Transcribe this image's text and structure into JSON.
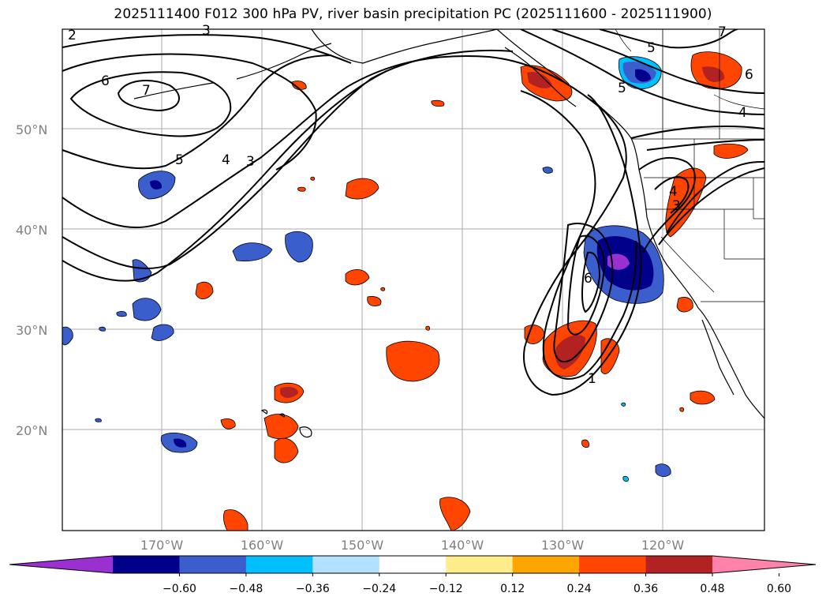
{
  "title": "2025111400 F012 300 hPa PV, river basin precipitation PC (2025111600 - 2025111900)",
  "lat_labels": [
    "50°N",
    "40°N",
    "30°N",
    "20°N"
  ],
  "lon_labels": [
    "170°W",
    "160°W",
    "150°W",
    "140°W",
    "130°W",
    "120°W"
  ],
  "colorbar": {
    "colors": [
      "#9b30d0",
      "#00008b",
      "#3a5fcd",
      "#00bfff",
      "#b0e2ff",
      "#ffffff",
      "#ffec8b",
      "#ffa500",
      "#ff4500",
      "#b22222",
      "#ff82ab"
    ],
    "tick_labels": [
      "−0.60",
      "−0.48",
      "−0.36",
      "−0.24",
      "−0.12",
      "0.12",
      "0.24",
      "0.36",
      "0.48",
      "0.60"
    ]
  },
  "pv_contour_labels": [
    "2",
    "3",
    "6",
    "7",
    "5",
    "4",
    "3",
    "5",
    "6",
    "4",
    "5",
    "7",
    "4",
    "3",
    "6",
    "1"
  ]
}
